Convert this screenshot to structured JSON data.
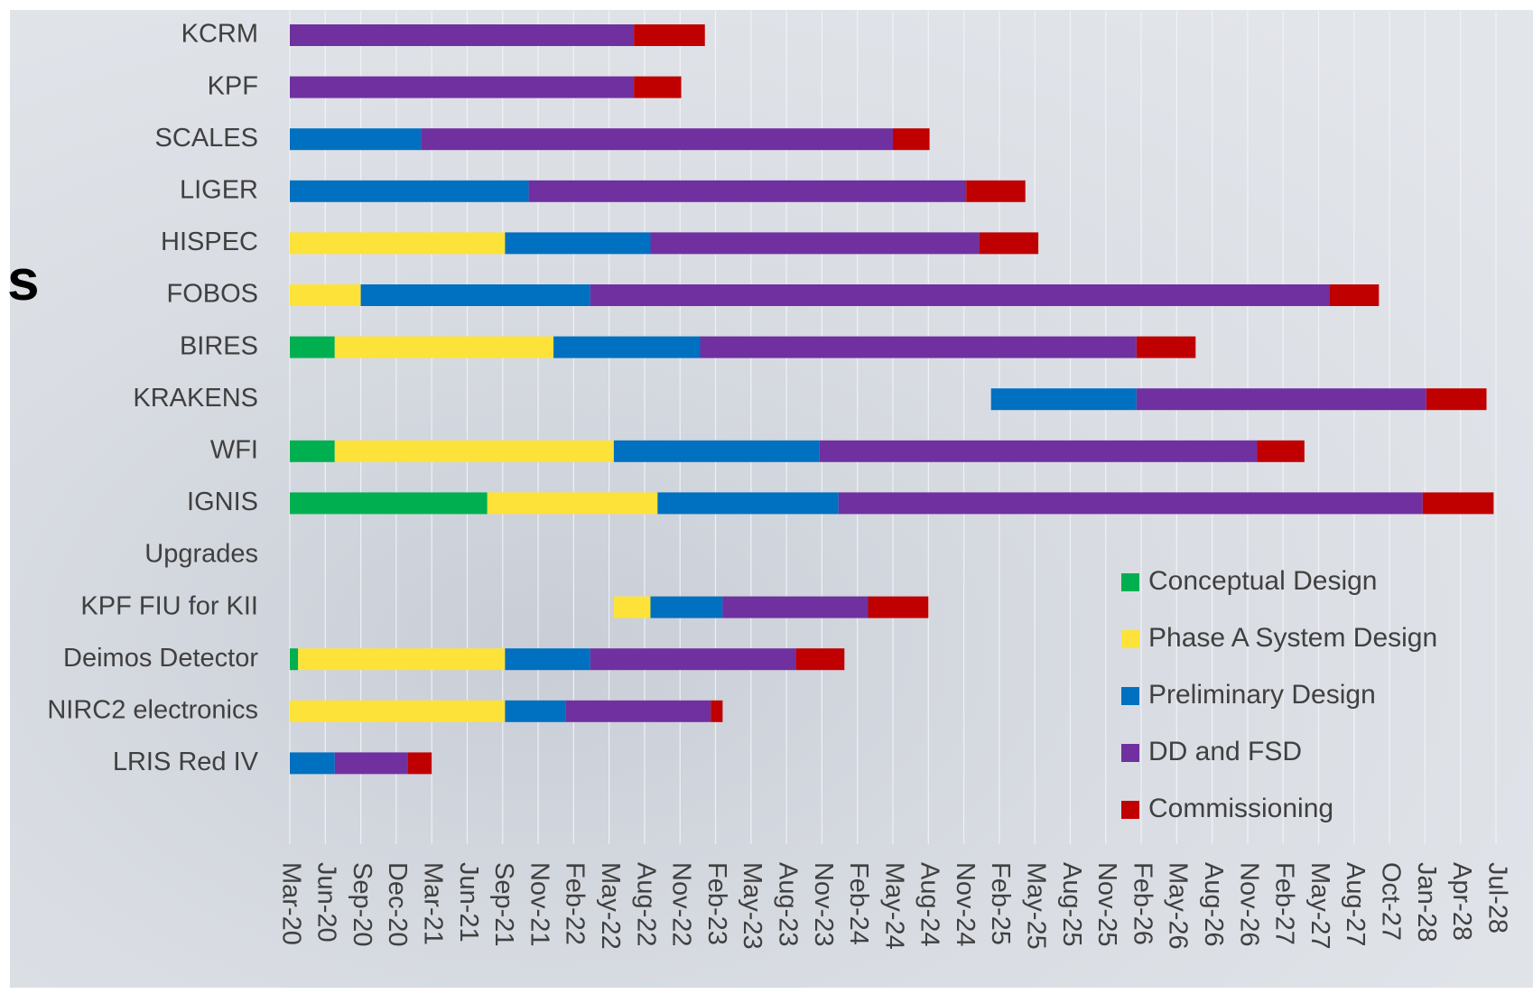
{
  "chart_data": {
    "type": "gantt",
    "annotation": "s",
    "categories": [
      "KCRM",
      "KPF",
      "SCALES",
      "LIGER",
      "HISPEC",
      "FOBOS",
      "BIRES",
      "KRAKENS",
      "WFI",
      "IGNIS",
      "Upgrades",
      "KPF FIU for KII",
      "Deimos Detector",
      "NIRC2 electronics",
      "LRIS Red IV"
    ],
    "start": [
      0,
      0,
      0,
      0,
      0,
      0,
      0,
      59.3,
      0,
      0,
      null,
      27.4,
      0,
      0,
      0
    ],
    "series": [
      {
        "name": "Conceptual Design",
        "color": "#00b050",
        "values": [
          null,
          null,
          null,
          null,
          null,
          null,
          3.8,
          null,
          3.8,
          16.7,
          null,
          null,
          0.7,
          null,
          null
        ]
      },
      {
        "name": "Phase A System Design",
        "color": "#fde23a",
        "values": [
          null,
          null,
          null,
          null,
          18.2,
          6,
          18.5,
          null,
          23.6,
          14.4,
          null,
          3.1,
          17.5,
          18.2,
          null
        ]
      },
      {
        "name": "Preliminary Design",
        "color": "#0070c0",
        "values": [
          null,
          null,
          11.1,
          20.2,
          12.3,
          19.4,
          12.4,
          12.3,
          17.4,
          15.3,
          null,
          6.1,
          7.2,
          5.1,
          3.8
        ]
      },
      {
        "name": "DD and FSD",
        "color": "#7030a0",
        "values": [
          29.1,
          29.1,
          39.9,
          37,
          27.8,
          62.5,
          36.9,
          24.5,
          37,
          49.4,
          null,
          12.3,
          17.4,
          12.3,
          6.2
        ]
      },
      {
        "name": "Commissioning",
        "color": "#c00000",
        "values": [
          6,
          4,
          3.1,
          5,
          5,
          4.2,
          5,
          5.1,
          4,
          6,
          null,
          5.1,
          4.1,
          1,
          2
        ]
      }
    ],
    "xlim": [
      0,
      102
    ],
    "xticks": [
      {
        "value": 0,
        "label": "Mar-20"
      },
      {
        "value": 3,
        "label": "Jun-20"
      },
      {
        "value": 6,
        "label": "Sep-20"
      },
      {
        "value": 9,
        "label": "Dec-20"
      },
      {
        "value": 12,
        "label": "Mar-21"
      },
      {
        "value": 15,
        "label": "Jun-21"
      },
      {
        "value": 18,
        "label": "Sep-21"
      },
      {
        "value": 21,
        "label": "Nov-21"
      },
      {
        "value": 24,
        "label": "Feb-22"
      },
      {
        "value": 27,
        "label": "May-22"
      },
      {
        "value": 30,
        "label": "Aug-22"
      },
      {
        "value": 33,
        "label": "Nov-22"
      },
      {
        "value": 36,
        "label": "Feb-23"
      },
      {
        "value": 39,
        "label": "May-23"
      },
      {
        "value": 42,
        "label": "Aug-23"
      },
      {
        "value": 45,
        "label": "Nov-23"
      },
      {
        "value": 48,
        "label": "Feb-24"
      },
      {
        "value": 51,
        "label": "May-24"
      },
      {
        "value": 54,
        "label": "Aug-24"
      },
      {
        "value": 57,
        "label": "Nov-24"
      },
      {
        "value": 60,
        "label": "Feb-25"
      },
      {
        "value": 63,
        "label": "May-25"
      },
      {
        "value": 66,
        "label": "Aug-25"
      },
      {
        "value": 69,
        "label": "Nov-25"
      },
      {
        "value": 72,
        "label": "Feb-26"
      },
      {
        "value": 75,
        "label": "May-26"
      },
      {
        "value": 78,
        "label": "Aug-26"
      },
      {
        "value": 81,
        "label": "Nov-26"
      },
      {
        "value": 84,
        "label": "Feb-27"
      },
      {
        "value": 87,
        "label": "May-27"
      },
      {
        "value": 90,
        "label": "Aug-27"
      },
      {
        "value": 93,
        "label": "Oct-27"
      },
      {
        "value": 96,
        "label": "Jan-28"
      },
      {
        "value": 99,
        "label": "Apr-28"
      },
      {
        "value": 102,
        "label": "Jul-28"
      }
    ],
    "grid": true,
    "legend": "lower right"
  }
}
